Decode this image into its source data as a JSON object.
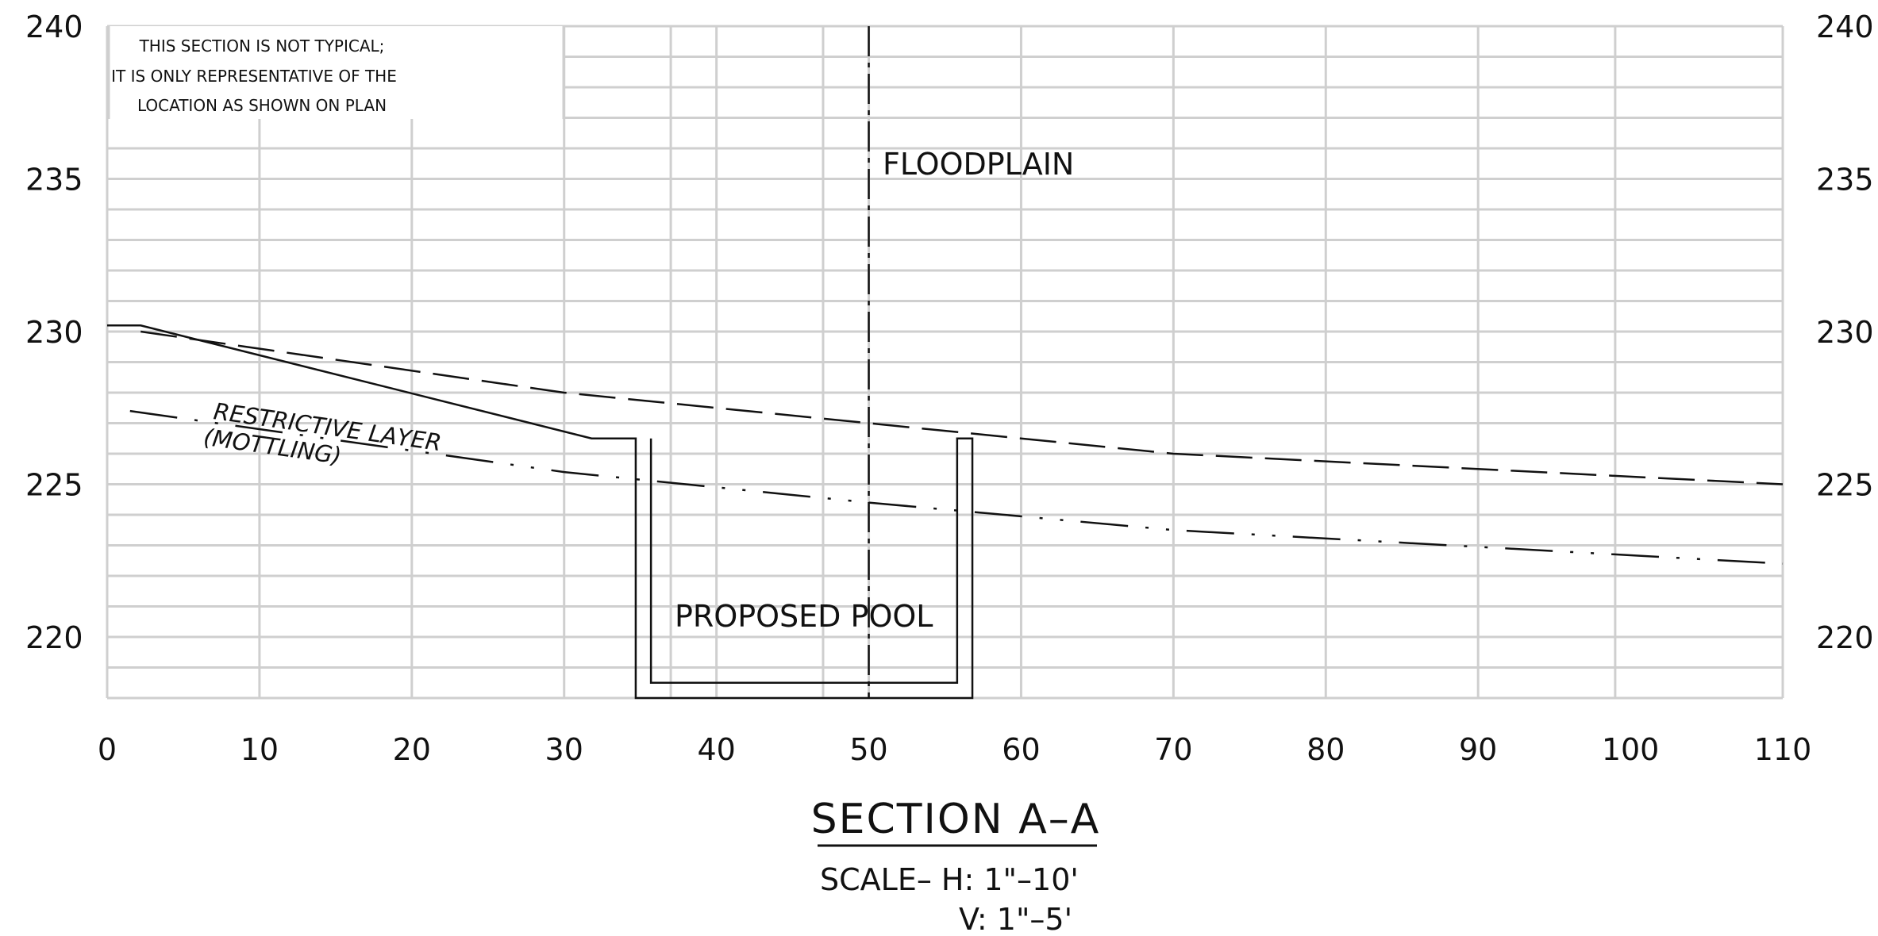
{
  "note": {
    "lines": [
      "THIS SECTION IS NOT TYPICAL;",
      "IT IS ONLY REPRESENTATIVE OF THE",
      "LOCATION AS SHOWN ON PLAN"
    ]
  },
  "labels": {
    "floodplain": "FLOODPLAIN",
    "restrictive_line1": "RESTRICTIVE LAYER",
    "restrictive_line2": "(MOTTLING)",
    "pool": "PROPOSED POOL"
  },
  "title": "SECTION A–A",
  "scale": {
    "line1": "SCALE–  H:  1\"–10'",
    "line2": "V:  1\"–5'"
  },
  "axes": {
    "x_ticks": [
      "0",
      "10",
      "20",
      "30",
      "40",
      "50",
      "60",
      "70",
      "80",
      "90",
      "100",
      "110"
    ],
    "y_ticks_left": [
      "240",
      "235",
      "230",
      "225",
      "220"
    ],
    "y_ticks_right": [
      "240",
      "235",
      "230",
      "225",
      "220"
    ]
  },
  "chart_data": {
    "type": "line",
    "xlim": [
      0,
      110
    ],
    "ylim": [
      218,
      240
    ],
    "x_gridlines": [
      0,
      10,
      20,
      30,
      37,
      40,
      47,
      50,
      60,
      70,
      80,
      90,
      99,
      110
    ],
    "y_gridline_interval": 1,
    "centerline_x": 50,
    "series": [
      {
        "name": "existing-ground",
        "style": "solid",
        "points": [
          [
            0,
            230.2
          ],
          [
            2.2,
            230.2
          ],
          [
            31.8,
            226.5
          ],
          [
            34.7,
            226.5
          ],
          [
            34.7,
            218
          ],
          [
            56.8,
            218
          ],
          [
            56.8,
            226.5
          ],
          [
            55.8,
            226.5
          ],
          [
            55.8,
            218.5
          ],
          [
            35.7,
            218.5
          ],
          [
            35.7,
            226.5
          ]
        ]
      },
      {
        "name": "floodplain-line",
        "style": "dashed",
        "points": [
          [
            2.2,
            230
          ],
          [
            30,
            228
          ],
          [
            50,
            227
          ],
          [
            70,
            226
          ],
          [
            110,
            225
          ]
        ]
      },
      {
        "name": "restrictive-layer-line",
        "style": "dash-dot-dot",
        "points": [
          [
            1.5,
            227.4
          ],
          [
            30,
            225.4
          ],
          [
            50,
            224.4
          ],
          [
            70,
            223.5
          ],
          [
            110,
            222.4
          ]
        ]
      }
    ]
  }
}
